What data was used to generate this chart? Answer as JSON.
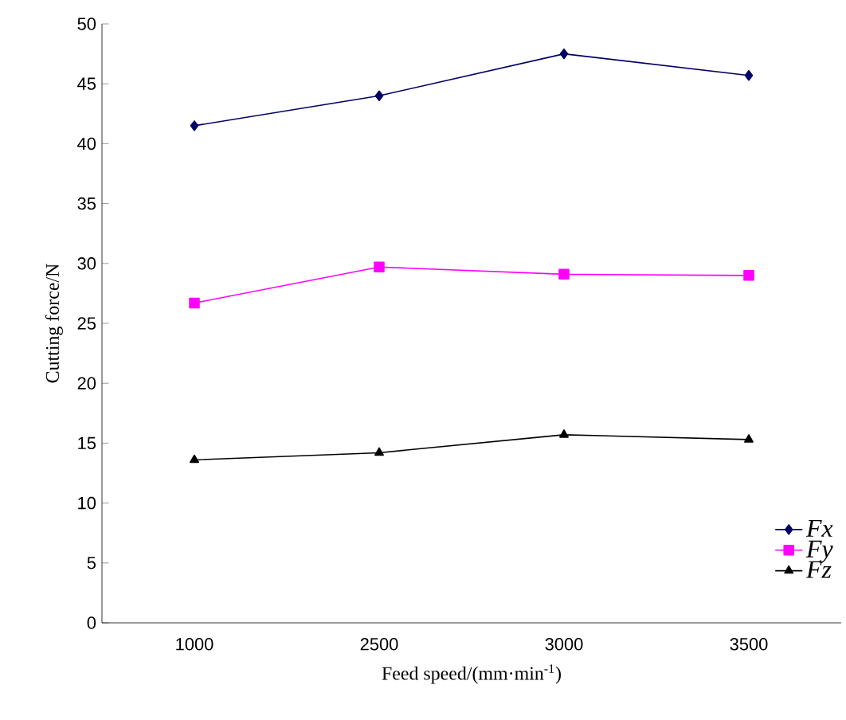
{
  "chart_data": {
    "type": "line",
    "xlabel": "Feed speed/(mm·min$^{-1}$)",
    "ylabel": "Cutting force/N",
    "categories": [
      "1000",
      "2500",
      "3000",
      "3500"
    ],
    "series": [
      {
        "name": "Fx",
        "color": "#000066",
        "marker": "diamond",
        "values": [
          41.5,
          44.0,
          47.5,
          45.7
        ]
      },
      {
        "name": "Fy",
        "color": "#ff00ff",
        "marker": "square",
        "values": [
          26.7,
          29.7,
          29.1,
          29.0
        ]
      },
      {
        "name": "Fz",
        "color": "#000000",
        "marker": "triangle",
        "values": [
          13.6,
          14.2,
          15.7,
          15.3
        ]
      }
    ],
    "ylim": [
      0,
      50
    ],
    "yticks": [
      0,
      5,
      10,
      15,
      20,
      25,
      30,
      35,
      40,
      45,
      50
    ],
    "grid": false,
    "legend": "bottom right"
  }
}
